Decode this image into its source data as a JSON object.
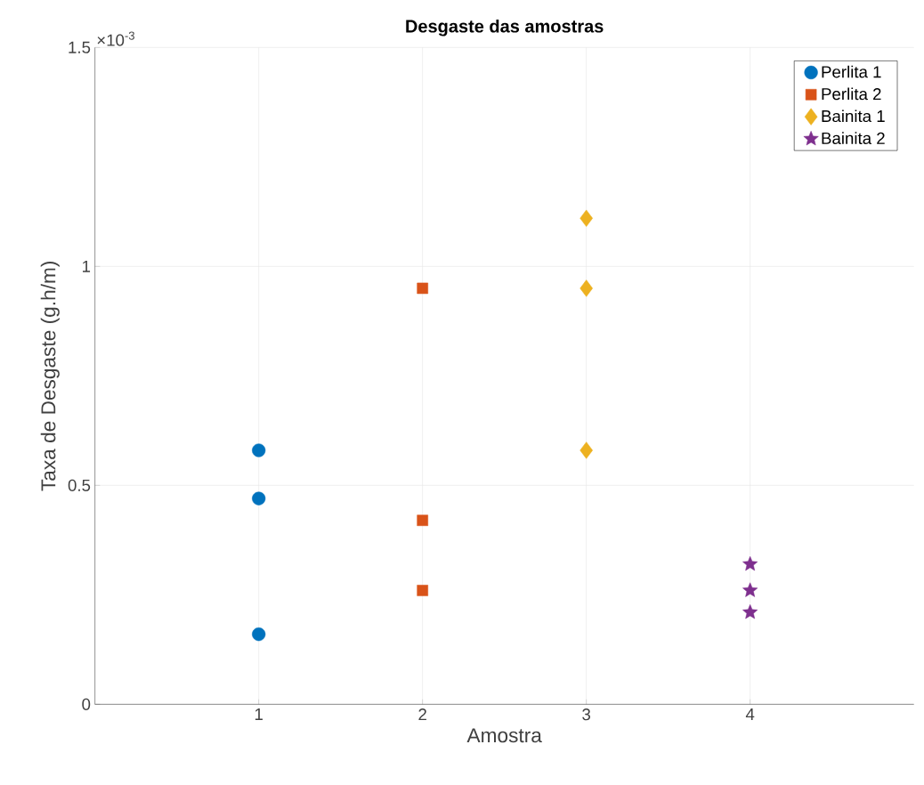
{
  "chart_data": {
    "type": "scatter",
    "title": "Desgaste das amostras",
    "xlabel": "Amostra",
    "ylabel": "Taxa de Desgaste (g.h/m)",
    "annotations": [
      "×10$^{-3}$"
    ],
    "xlim": [
      0,
      5
    ],
    "xticks": [
      1,
      2,
      3,
      4
    ],
    "ylim": [
      0,
      1.5
    ],
    "yticks": [
      0,
      0.5,
      1,
      1.5
    ],
    "grid": true,
    "legend": "top right",
    "series": [
      {
        "name": "Perlita 1",
        "color": "#0072bd",
        "marker": "circle",
        "x": [
          1,
          1,
          1
        ],
        "values": [
          0.58,
          0.47,
          0.16
        ]
      },
      {
        "name": "Perlita 2",
        "color": "#d95319",
        "marker": "square",
        "x": [
          2,
          2,
          2
        ],
        "values": [
          0.95,
          0.42,
          0.26
        ]
      },
      {
        "name": "Bainita 1",
        "color": "#edb120",
        "marker": "diamond",
        "x": [
          3,
          3,
          3
        ],
        "values": [
          1.11,
          0.95,
          0.58
        ]
      },
      {
        "name": "Bainita 2",
        "color": "#7e2f8e",
        "marker": "star",
        "x": [
          4,
          4,
          4
        ],
        "values": [
          0.32,
          0.26,
          0.21
        ]
      }
    ]
  }
}
